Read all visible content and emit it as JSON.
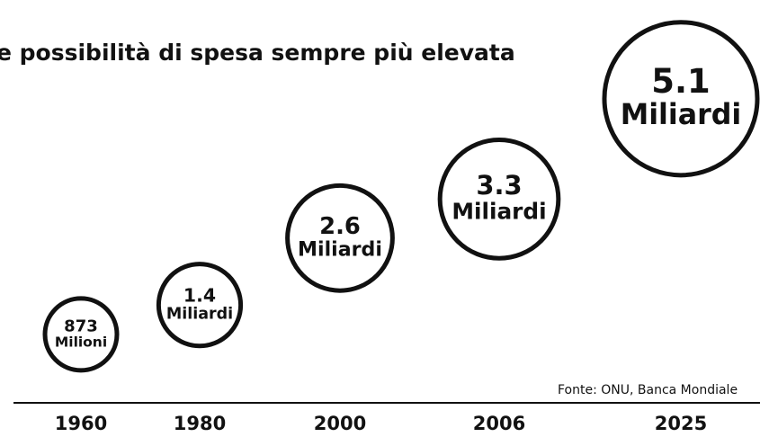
{
  "chart_data": {
    "type": "bubble",
    "title": "e possibilità di spesa sempre più elevata",
    "source": "Fonte: ONU, Banca Mondiale",
    "categories": [
      "1960",
      "1980",
      "2000",
      "2006",
      "2025"
    ],
    "values": [
      0.873,
      1.4,
      2.6,
      3.3,
      5.1
    ],
    "value_labels": [
      [
        "873",
        "Milioni"
      ],
      [
        "1.4",
        "Miliardi"
      ],
      [
        "2.6",
        "Miliardi"
      ],
      [
        "3.3",
        "Miliardi"
      ],
      [
        "5.1",
        "Miliardi"
      ]
    ],
    "color": "#111111"
  }
}
